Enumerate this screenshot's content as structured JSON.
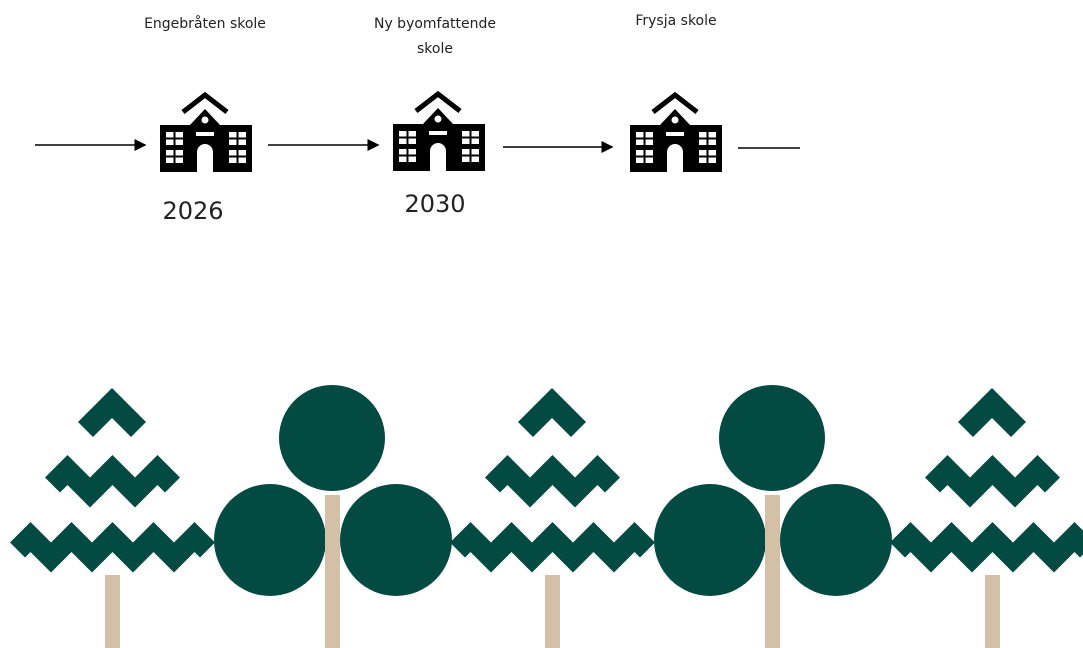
{
  "timeline": {
    "nodes": [
      {
        "label": "Engebråten skole",
        "year": "2026"
      },
      {
        "label": "Ny byomfattende skole",
        "year": "2030"
      },
      {
        "label": "Frysja skole"
      }
    ]
  }
}
